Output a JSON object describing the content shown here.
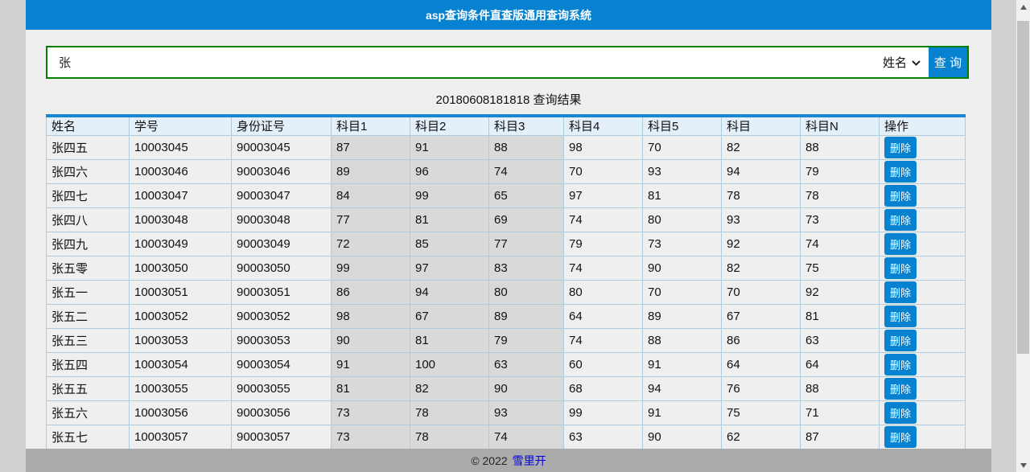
{
  "header": {
    "title": "asp查询条件直查版通用查询系统"
  },
  "search": {
    "value": "张",
    "field_selected": "姓名",
    "button_label": "查 询"
  },
  "results": {
    "heading": "20180608181818 查询结果"
  },
  "table": {
    "columns": [
      "姓名",
      "学号",
      "身份证号",
      "科目1",
      "科目2",
      "科目3",
      "科目4",
      "科目5",
      "科目",
      "科目N",
      "操作"
    ],
    "delete_label": "删除",
    "rows": [
      [
        "张四五",
        "10003045",
        "90003045",
        "87",
        "91",
        "88",
        "98",
        "70",
        "82",
        "88"
      ],
      [
        "张四六",
        "10003046",
        "90003046",
        "89",
        "96",
        "74",
        "70",
        "93",
        "94",
        "79"
      ],
      [
        "张四七",
        "10003047",
        "90003047",
        "84",
        "99",
        "65",
        "97",
        "81",
        "78",
        "78"
      ],
      [
        "张四八",
        "10003048",
        "90003048",
        "77",
        "81",
        "69",
        "74",
        "80",
        "93",
        "73"
      ],
      [
        "张四九",
        "10003049",
        "90003049",
        "72",
        "85",
        "77",
        "79",
        "73",
        "92",
        "74"
      ],
      [
        "张五零",
        "10003050",
        "90003050",
        "99",
        "97",
        "83",
        "74",
        "90",
        "82",
        "75"
      ],
      [
        "张五一",
        "10003051",
        "90003051",
        "86",
        "94",
        "80",
        "80",
        "70",
        "70",
        "92"
      ],
      [
        "张五二",
        "10003052",
        "90003052",
        "98",
        "67",
        "89",
        "64",
        "89",
        "67",
        "81"
      ],
      [
        "张五三",
        "10003053",
        "90003053",
        "90",
        "81",
        "79",
        "74",
        "88",
        "86",
        "63"
      ],
      [
        "张五四",
        "10003054",
        "90003054",
        "91",
        "100",
        "63",
        "60",
        "91",
        "64",
        "64"
      ],
      [
        "张五五",
        "10003055",
        "90003055",
        "81",
        "82",
        "90",
        "68",
        "94",
        "76",
        "88"
      ],
      [
        "张五六",
        "10003056",
        "90003056",
        "73",
        "78",
        "93",
        "99",
        "91",
        "75",
        "71"
      ],
      [
        "张五七",
        "10003057",
        "90003057",
        "73",
        "78",
        "74",
        "63",
        "90",
        "62",
        "87"
      ]
    ]
  },
  "footer": {
    "copyright": "© 2022",
    "link_label": "雪里开"
  },
  "colors": {
    "accent_blue": "#0782d0",
    "input_border_green": "#008000",
    "table_header_bg": "#e3eff9",
    "gray_column_bg": "#d9d9d9",
    "row_bg": "#efefef",
    "footer_bg": "#ababab"
  }
}
